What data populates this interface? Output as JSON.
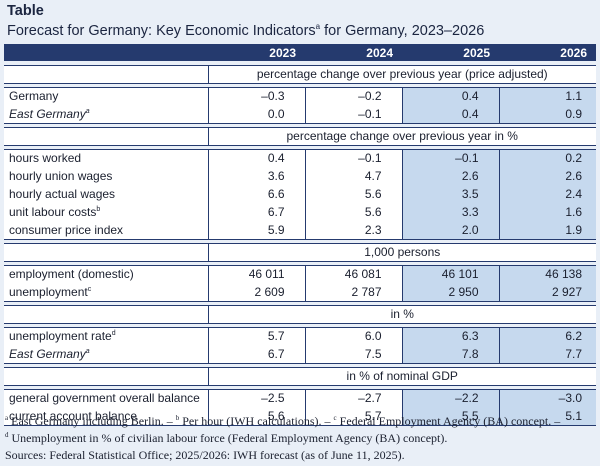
{
  "kicker": "Table",
  "title": {
    "text": "Forecast for Germany: Key Economic Indicators",
    "sup": "a",
    "rest": " for Germany, 2023–2026"
  },
  "columns": [
    "",
    "2023",
    "2024",
    "2025",
    "2026"
  ],
  "sections": [
    {
      "heading": "percentage change over previous year (price adjusted)",
      "rows": [
        {
          "label": "Germany",
          "sup": "",
          "italic": false,
          "values": [
            "–0.3",
            "–0.2",
            "0.4",
            "1.1"
          ]
        },
        {
          "label": "East Germany",
          "sup": "a",
          "italic": true,
          "values": [
            "0.0",
            "–0.1",
            "0.4",
            "0.9"
          ]
        }
      ]
    },
    {
      "heading": "percentage change over previous year in %",
      "rows": [
        {
          "label": "hours worked",
          "sup": "",
          "italic": false,
          "values": [
            "0.4",
            "–0.1",
            "–0.1",
            "0.2"
          ]
        },
        {
          "label": "hourly union wages",
          "sup": "",
          "italic": false,
          "values": [
            "3.6",
            "4.7",
            "2.6",
            "2.6"
          ]
        },
        {
          "label": "hourly actual wages",
          "sup": "",
          "italic": false,
          "values": [
            "6.6",
            "5.6",
            "3.5",
            "2.4"
          ]
        },
        {
          "label": "unit labour costs",
          "sup": "b",
          "italic": false,
          "values": [
            "6.7",
            "5.6",
            "3.3",
            "1.6"
          ]
        },
        {
          "label": "consumer price index",
          "sup": "",
          "italic": false,
          "values": [
            "5.9",
            "2.3",
            "2.0",
            "1.9"
          ]
        }
      ]
    },
    {
      "heading": "1,000 persons",
      "rows": [
        {
          "label": "employment (domestic)",
          "sup": "",
          "italic": false,
          "values": [
            "46 011",
            "46 081",
            "46 101",
            "46 138"
          ]
        },
        {
          "label": "unemployment",
          "sup": "c",
          "italic": false,
          "values": [
            "2 609",
            "2 787",
            "2 950",
            "2 927"
          ]
        }
      ]
    },
    {
      "heading": "in %",
      "rows": [
        {
          "label": "unemployment rate",
          "sup": "d",
          "italic": false,
          "values": [
            "5.7",
            "6.0",
            "6.3",
            "6.2"
          ]
        },
        {
          "label": "East Germany",
          "sup": "a",
          "italic": true,
          "values": [
            "6.7",
            "7.5",
            "7.8",
            "7.7"
          ]
        }
      ]
    },
    {
      "heading": "in % of nominal GDP",
      "rows": [
        {
          "label": "general government overall balance",
          "sup": "",
          "italic": false,
          "values": [
            "–2.5",
            "–2.7",
            "–2.2",
            "–3.0"
          ]
        },
        {
          "label": "current account balance",
          "sup": "",
          "italic": false,
          "values": [
            "5.6",
            "5.7",
            "5.5",
            "5.1"
          ]
        }
      ]
    }
  ],
  "footnotes": {
    "a": {
      "sup": "a",
      "text": " East Germany including Berlin. – "
    },
    "b": {
      "sup": "b",
      "text": " Per hour (IWH calculations). – "
    },
    "c": {
      "sup": "c",
      "text": " Federal Employment Agency (BA) concept. –"
    },
    "d": {
      "sup": "d",
      "text": " Unemployment in % of civilian labour force (Federal Employment Agency (BA) concept)."
    }
  },
  "sources": "Sources: Federal Statistical Office; 2025/2026: IWH forecast (as of June 11, 2025).",
  "colors": {
    "header": "#253a6e",
    "forecast": "#c6d9ee",
    "background": "#e9eff7"
  }
}
